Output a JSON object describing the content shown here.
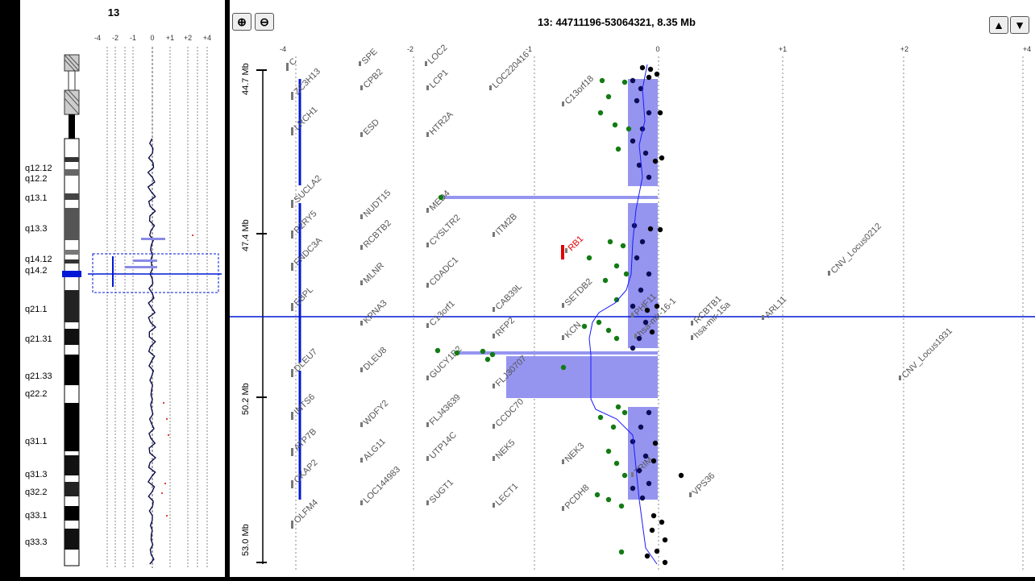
{
  "left": {
    "chromosome": "13",
    "scale_ticks": [
      "-4",
      "-2",
      "-1",
      "0",
      "+1",
      "+2",
      "+4"
    ],
    "bands": [
      "q12.12",
      "q12.2",
      "q13.1",
      "q13.3",
      "q14.12",
      "q14.2",
      "q21.1",
      "q21.31",
      "q21.33",
      "q22.2",
      "q31.1",
      "q31.3",
      "q32.2",
      "q33.1",
      "q33.3"
    ]
  },
  "right": {
    "title": "13: 44711196-53064321, 8.35 Mb",
    "scale_ticks": [
      "-4",
      "-2",
      "-1",
      "0",
      "+1",
      "+2",
      "+4"
    ],
    "positions": [
      "44.7 Mb",
      "47.4 Mb",
      "50.2 Mb",
      "53.0 Mb"
    ],
    "zoom_in": "zoom-in-icon",
    "zoom_out": "zoom-out-icon",
    "up": "up-arrow-icon",
    "down": "down-arrow-icon",
    "genes": {
      "col1": [
        "C",
        "ZC3H13",
        "LRCH1",
        "SUCLA2",
        "P2RY5",
        "FNDC3A",
        "EBPL",
        "DLEU7",
        "INTS6",
        "ATP7B",
        "CKAP2",
        "OLFM4"
      ],
      "col2": [
        "SPE",
        "CPB2",
        "ESD",
        "NUDT15",
        "RCBTB2",
        "MLNR",
        "KPNA3",
        "DLEU8",
        "WDFY2",
        "ALG11",
        "LOC144983"
      ],
      "col3": [
        "LOC2",
        "LCP1",
        "HTR2A",
        "MED4",
        "CYSLTR2",
        "CDADC1",
        "C13orf1",
        "GUCY1B2",
        "FLJ43639",
        "UTP14C",
        "SUGT1"
      ],
      "col4": [
        "LOC220416",
        "ITM2B",
        "CAB39L",
        "RFP2",
        "FLJ30707",
        "CCDC70",
        "NEK5",
        "LECT1"
      ],
      "col5": [
        "C13orf18",
        "SETDB2",
        "KCN",
        "NEK3",
        "PCDH8"
      ],
      "col6": [
        "RB1",
        "PHF11",
        "hsa-mir-16-1",
        "TRIM"
      ],
      "col7": [
        "RCBTB1",
        "hsa-mir-15a",
        "ARL11",
        "VPS36"
      ],
      "col8": [
        "CNV_Locus0212",
        "CNV_Locus1931"
      ]
    }
  }
}
